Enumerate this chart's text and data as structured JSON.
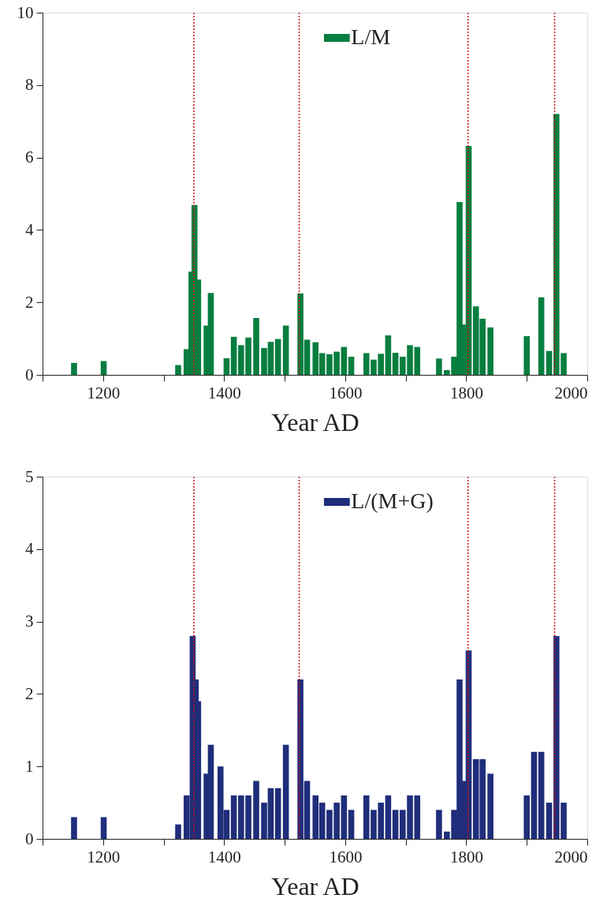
{
  "chart_data": [
    {
      "type": "bar",
      "xlabel": "Year AD",
      "legend": "top",
      "x": [
        1152,
        1201,
        1324,
        1338,
        1346,
        1351,
        1357,
        1371,
        1378,
        1404,
        1416,
        1428,
        1440,
        1453,
        1466,
        1477,
        1489,
        1502,
        1526,
        1537,
        1551,
        1562,
        1574,
        1586,
        1598,
        1610,
        1635,
        1647,
        1659,
        1671,
        1683,
        1695,
        1707,
        1719,
        1755,
        1768,
        1780,
        1789,
        1796,
        1804,
        1816,
        1827,
        1840,
        1900,
        1924,
        1937,
        1949,
        1961
      ],
      "series": [
        {
          "name": "L/M",
          "color": "#077e3f",
          "values": [
            0.33,
            0.38,
            0.27,
            0.71,
            2.85,
            4.69,
            2.63,
            1.36,
            2.26,
            0.46,
            1.05,
            0.82,
            1.03,
            1.57,
            0.74,
            0.91,
            0.99,
            1.36,
            2.25,
            0.97,
            0.9,
            0.6,
            0.57,
            0.64,
            0.77,
            0.5,
            0.6,
            0.42,
            0.58,
            1.09,
            0.61,
            0.5,
            0.82,
            0.77,
            0.45,
            0.13,
            0.5,
            4.77,
            1.39,
            6.32,
            1.89,
            1.55,
            1.31,
            1.07,
            2.14,
            0.66,
            7.2,
            0.6
          ]
        }
      ],
      "xlim": [
        1100,
        2000
      ],
      "xticks": [
        {
          "value": 1100,
          "label": null
        },
        1200,
        {
          "value": 1300,
          "label": null
        },
        1400,
        {
          "value": 1500,
          "label": null
        },
        1600,
        {
          "value": 1700,
          "label": null
        },
        1800,
        {
          "value": 1900,
          "label": null
        },
        2000
      ],
      "ylim": [
        0,
        10
      ],
      "yticks": [
        0,
        2,
        4,
        6,
        8,
        10
      ],
      "ref_lines": [
        {
          "axis": "x",
          "value": 1350,
          "color": "#cc1111",
          "line_style": "dotted"
        },
        {
          "axis": "x",
          "value": 1524,
          "color": "#cc1111",
          "line_style": "dotted"
        },
        {
          "axis": "x",
          "value": 1803,
          "color": "#cc1111",
          "line_style": "dotted"
        },
        {
          "axis": "x",
          "value": 1946,
          "color": "#cc1111",
          "line_style": "dotted"
        }
      ]
    },
    {
      "type": "bar",
      "xlabel": "Year AD",
      "legend": "top",
      "x": [
        1152,
        1201,
        1324,
        1338,
        1348,
        1353,
        1357,
        1371,
        1378,
        1394,
        1404,
        1416,
        1428,
        1440,
        1453,
        1466,
        1477,
        1489,
        1502,
        1526,
        1537,
        1551,
        1562,
        1574,
        1586,
        1598,
        1610,
        1635,
        1647,
        1659,
        1671,
        1683,
        1695,
        1707,
        1719,
        1755,
        1768,
        1780,
        1789,
        1796,
        1804,
        1816,
        1827,
        1840,
        1900,
        1912,
        1924,
        1937,
        1949,
        1961
      ],
      "series": [
        {
          "name": "L/(M+G)",
          "color": "#1f2d7b",
          "values": [
            0.3,
            0.3,
            0.2,
            0.6,
            2.8,
            2.2,
            1.9,
            0.9,
            1.3,
            1.0,
            0.4,
            0.6,
            0.6,
            0.6,
            0.8,
            0.5,
            0.7,
            0.7,
            1.3,
            2.2,
            0.8,
            0.6,
            0.5,
            0.4,
            0.5,
            0.6,
            0.4,
            0.6,
            0.4,
            0.5,
            0.6,
            0.4,
            0.4,
            0.6,
            0.6,
            0.4,
            0.1,
            0.4,
            2.2,
            0.8,
            2.6,
            1.1,
            1.1,
            0.9,
            0.6,
            1.2,
            1.2,
            0.5,
            2.8,
            0.5
          ]
        }
      ],
      "xlim": [
        1100,
        2000
      ],
      "xticks": [
        {
          "value": 1100,
          "label": null
        },
        1200,
        {
          "value": 1300,
          "label": null
        },
        1400,
        {
          "value": 1500,
          "label": null
        },
        1600,
        {
          "value": 1700,
          "label": null
        },
        1800,
        {
          "value": 1900,
          "label": null
        },
        2000
      ],
      "ylim": [
        0,
        5
      ],
      "yticks": [
        0,
        1,
        2,
        3,
        4,
        5
      ],
      "ref_lines": [
        {
          "axis": "x",
          "value": 1350,
          "color": "#cc1111",
          "line_style": "dotted"
        },
        {
          "axis": "x",
          "value": 1524,
          "color": "#cc1111",
          "line_style": "dotted"
        },
        {
          "axis": "x",
          "value": 1803,
          "color": "#cc1111",
          "line_style": "dotted"
        },
        {
          "axis": "x",
          "value": 1946,
          "color": "#cc1111",
          "line_style": "dotted"
        }
      ]
    }
  ]
}
